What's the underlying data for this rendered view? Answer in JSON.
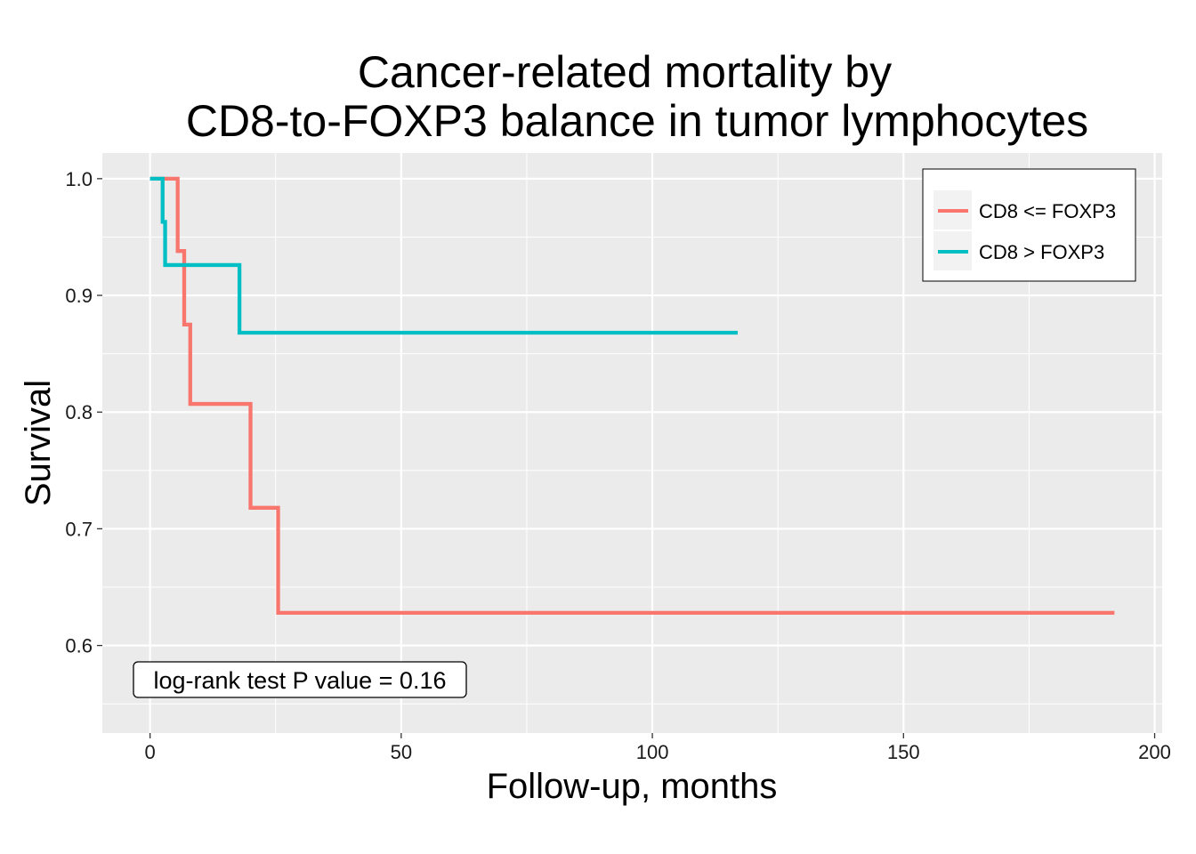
{
  "chart_data": {
    "type": "line",
    "subtype": "step",
    "title_lines": [
      "Cancer-related mortality by",
      "CD8-to-FOXP3 balance in tumor lymphocytes"
    ],
    "xlabel": "Follow-up, months",
    "ylabel": "Survival",
    "xlim": [
      -9.5,
      201.5
    ],
    "ylim": [
      0.525,
      1.022
    ],
    "x_ticks": [
      0,
      50,
      100,
      150,
      200
    ],
    "x_tick_labels": [
      "0",
      "50",
      "100",
      "150",
      "200"
    ],
    "y_ticks": [
      0.6,
      0.7,
      0.8,
      0.9,
      1.0
    ],
    "y_tick_labels": [
      "0.6",
      "0.7",
      "0.8",
      "0.9",
      "1.0"
    ],
    "grid": true,
    "legend_position": "top-right",
    "annotation": "log-rank test P value = 0.16",
    "series": [
      {
        "name": "CD8 <= FOXP3",
        "color": "#F8766D",
        "x": [
          0,
          5.5,
          6.8,
          8.0,
          20.0,
          25.5,
          192
        ],
        "y": [
          1.0,
          0.938,
          0.875,
          0.807,
          0.718,
          0.628,
          0.628
        ]
      },
      {
        "name": "CD8 > FOXP3",
        "color": "#00BFC4",
        "x": [
          0,
          2.5,
          3.0,
          17.8,
          117
        ],
        "y": [
          1.0,
          0.963,
          0.926,
          0.868,
          0.868
        ]
      }
    ]
  }
}
